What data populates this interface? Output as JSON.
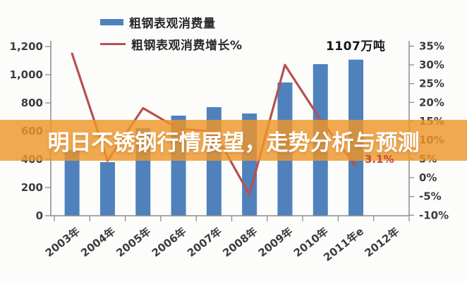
{
  "banner": {
    "text": "明日不锈钢行情展望，走势分析与预测"
  },
  "legend": [
    {
      "label": "粗钢表观消费量",
      "swatch": "bar",
      "color": "#4f81bd"
    },
    {
      "label": "粗钢表观消费增长%",
      "swatch": "line",
      "color": "#b5524d"
    }
  ],
  "annotations": {
    "peak_label": "1107万吨",
    "end_growth_label": "3.1%"
  },
  "colors": {
    "bar": "#4f81bd",
    "line": "#b5524d",
    "axis": "#8c8c8c",
    "tick_text": "#3c3c3c",
    "banner_bg": "#ee962a",
    "banner_text": "#ffffff",
    "growth_label": "#bf4a42"
  },
  "chart_data": {
    "type": "bar",
    "subtype": "bar+line combo, dual axis",
    "categories": [
      "2003年",
      "2004年",
      "2005年",
      "2006年",
      "2007年",
      "2008年",
      "2009年",
      "2010年",
      "2011年e",
      "2012年"
    ],
    "series": [
      {
        "name": "粗钢表观消费量",
        "type": "bar",
        "axis": "left",
        "unit": "万吨",
        "values": [
          465,
          380,
          620,
          710,
          770,
          725,
          945,
          1075,
          1107,
          null
        ]
      },
      {
        "name": "粗钢表观消费增长%",
        "type": "line",
        "axis": "right",
        "unit": "%",
        "values": [
          33,
          4.5,
          18.5,
          13,
          12.3,
          -4.5,
          30,
          15.4,
          3.1,
          null
        ]
      }
    ],
    "y_left": {
      "min": 0,
      "max": 1200,
      "tick_values": [
        0,
        200,
        400,
        600,
        800,
        1000,
        1200
      ],
      "tick_labels": [
        "0",
        "200",
        "400",
        "600",
        "800",
        "1,000",
        "1,200"
      ]
    },
    "y_right": {
      "min": -10,
      "max": 35,
      "tick_values": [
        -10,
        -5,
        0,
        5,
        10,
        15,
        20,
        25,
        30,
        35
      ],
      "tick_labels": [
        "-10%",
        "-5%",
        "0%",
        "5%",
        "10%",
        "15%",
        "20%",
        "25%",
        "30%",
        "35%"
      ]
    },
    "grid": false,
    "legend_position": "top-left",
    "annotations": [
      {
        "text": "1107万吨",
        "target": "2011年e bar"
      },
      {
        "text": "3.1%",
        "target": "2011年e growth point"
      }
    ]
  }
}
